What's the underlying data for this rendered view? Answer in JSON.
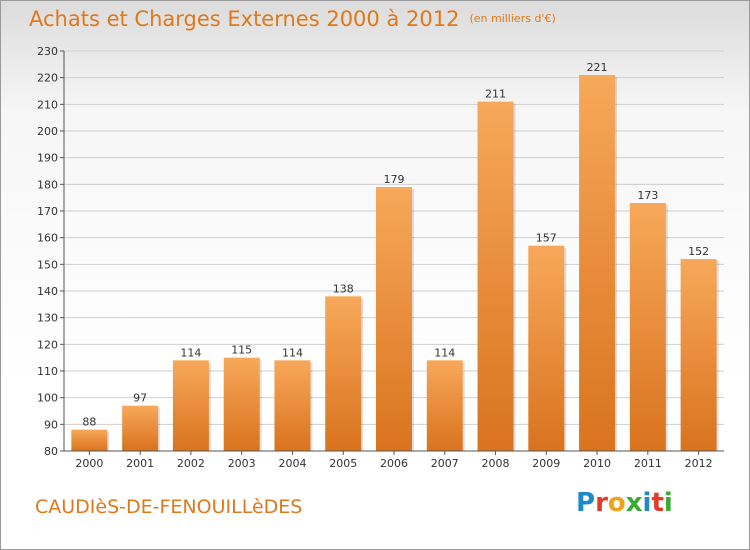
{
  "header": {
    "title": "Achats et Charges Externes 2000 à 2012",
    "subtitle": "(en milliers d'€)"
  },
  "footer": {
    "place": "CAUDIèS-DE-FENOUILLèDES",
    "logo_letters": [
      "P",
      "r",
      "o",
      "x",
      "i",
      "t",
      "i"
    ],
    "logo_colors": [
      "#1e88c8",
      "#e23b2a",
      "#f2a019",
      "#3aaa35",
      "#1e88c8",
      "#e23b2a",
      "#3aaa35"
    ]
  },
  "colors": {
    "bar_top": "#f7a85a",
    "bar_bottom": "#d9731e",
    "grid": "#cfcfcf",
    "title": "#e0781a"
  },
  "chart_data": {
    "type": "bar",
    "title": "Achats et Charges Externes 2000 à 2012",
    "subtitle": "(en milliers d'€)",
    "xlabel": "",
    "ylabel": "",
    "categories": [
      "2000",
      "2001",
      "2002",
      "2003",
      "2004",
      "2005",
      "2006",
      "2007",
      "2008",
      "2009",
      "2010",
      "2011",
      "2012"
    ],
    "values": [
      88,
      97,
      114,
      115,
      114,
      138,
      179,
      114,
      211,
      157,
      221,
      173,
      152
    ],
    "ylim": [
      80,
      230
    ],
    "yticks": [
      80,
      90,
      100,
      110,
      120,
      130,
      140,
      150,
      160,
      170,
      180,
      190,
      200,
      210,
      220,
      230
    ],
    "grid": true,
    "data_labels": true
  }
}
